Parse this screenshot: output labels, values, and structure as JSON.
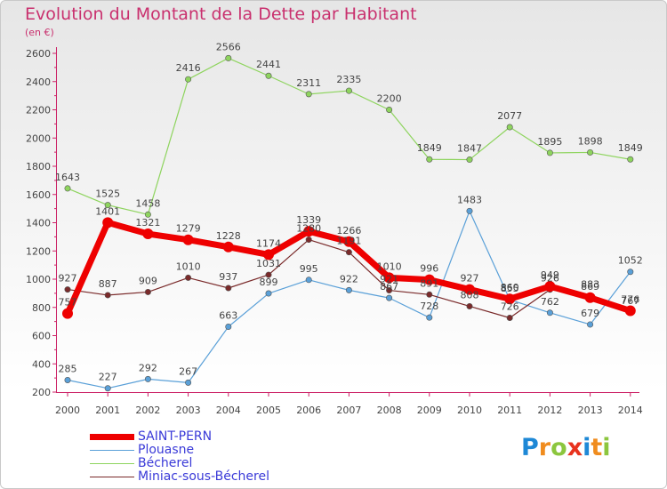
{
  "header": {
    "title": "Evolution du Montant de la Dette par Habitant",
    "subtitle": "(en €)"
  },
  "logo": {
    "letters": [
      "P",
      "r",
      "o",
      "x",
      "i",
      "t",
      "i"
    ],
    "colors": [
      "#1e88d6",
      "#f08c1e",
      "#8cc63e",
      "#e8321e",
      "#1e88d6",
      "#f08c1e",
      "#8cc63e"
    ]
  },
  "chart_data": {
    "type": "line",
    "title": "Evolution du Montant de la Dette par Habitant",
    "subtitle": "(en €)",
    "x": [
      "2000",
      "2001",
      "2002",
      "2003",
      "2004",
      "2005",
      "2006",
      "2007",
      "2008",
      "2009",
      "2010",
      "2011",
      "2012",
      "2013",
      "2014"
    ],
    "ylim": [
      200,
      2600
    ],
    "yticks": [
      "200",
      "400",
      "600",
      "800",
      "1000",
      "1200",
      "1400",
      "1600",
      "1800",
      "2000",
      "2200",
      "2400",
      "2600"
    ],
    "grid": false,
    "legend_position": "bottom-left",
    "series": [
      {
        "name": "SAINT-PERN",
        "color": "#ee0000",
        "values": [
          757,
          1401,
          1321,
          1279,
          1228,
          1174,
          1339,
          1266,
          1010,
          996,
          927,
          860,
          949,
          869,
          776
        ],
        "labels": [
          "757",
          "1401",
          "1321",
          "1279",
          "1228",
          "1174",
          "1339",
          "1266",
          "1010",
          "996",
          "927",
          "860",
          "949",
          "869",
          "776"
        ]
      },
      {
        "name": "Plouasne",
        "color": "#5aa0d8",
        "values": [
          285,
          227,
          292,
          267,
          663,
          899,
          995,
          922,
          867,
          728,
          1483,
          855,
          762,
          679,
          1052
        ],
        "labels": [
          "285",
          "227",
          "292",
          "267",
          "663",
          "899",
          "995",
          "922",
          "867",
          "728",
          "1483",
          "855",
          "762",
          "679",
          "1052"
        ]
      },
      {
        "name": "Bécherel",
        "color": "#8ed45e",
        "values": [
          1643,
          1525,
          1458,
          2416,
          2566,
          2441,
          2311,
          2335,
          2200,
          1849,
          1847,
          2077,
          1895,
          1898,
          1849
        ],
        "labels": [
          "1643",
          "1525",
          "1458",
          "2416",
          "2566",
          "2441",
          "2311",
          "2335",
          "2200",
          "1849",
          "1847",
          "2077",
          "1895",
          "1898",
          "1849"
        ]
      },
      {
        "name": "Miniac-sous-Bécherel",
        "color": "#7a2a2a",
        "values": [
          927,
          887,
          909,
          1010,
          937,
          1031,
          1280,
          1191,
          921,
          891,
          808,
          726,
          926,
          883,
          767
        ],
        "labels": [
          "927",
          "887",
          "909",
          "1010",
          "937",
          "1031",
          "1280",
          "1191",
          "921",
          "891",
          "808",
          "726",
          "926",
          "883",
          "767"
        ]
      }
    ]
  }
}
